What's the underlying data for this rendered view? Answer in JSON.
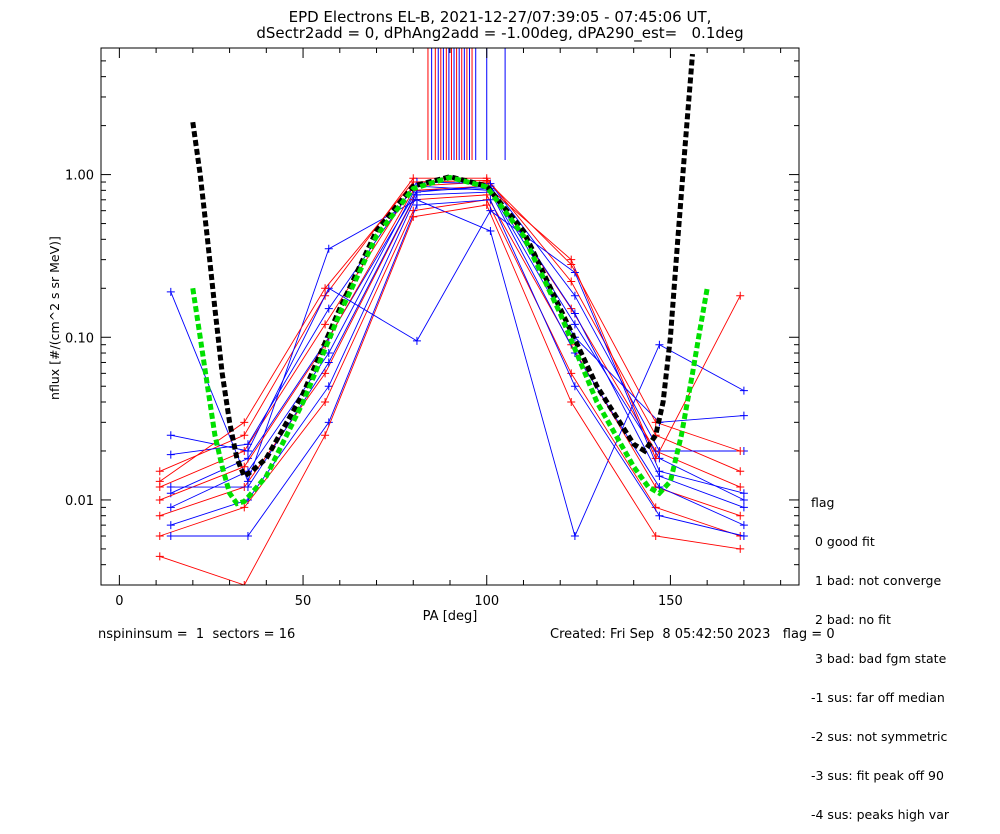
{
  "chart_data": {
    "type": "line",
    "title": "EPD Electrons EL-B, 2021-12-27/07:39:05 - 07:45:06 UT,",
    "subtitle": "dSectr2add = 0, dPhAng2add = -1.00deg, dPA290_est=   0.1deg",
    "xlabel": "PA [deg]",
    "ylabel": "nflux [#/(cm^2 s sr MeV)]",
    "xlim": [
      -5,
      185
    ],
    "ylim": [
      0.003,
      6
    ],
    "yscale": "log",
    "x_ticks": [
      0,
      50,
      100,
      150
    ],
    "y_ticks": [
      {
        "value": 1.0,
        "label": "1.00"
      },
      {
        "value": 0.1,
        "label": "0.10"
      },
      {
        "value": 0.01,
        "label": "0.01"
      }
    ],
    "pa_samples": [
      11,
      14,
      34,
      35,
      56,
      57,
      80,
      81,
      90,
      98,
      100,
      101,
      123,
      124,
      146,
      147,
      169,
      170
    ],
    "series": [
      {
        "color": "#ff0000",
        "points": [
          [
            11,
            0.012
          ],
          [
            34,
            0.02
          ],
          [
            56,
            0.12
          ],
          [
            80,
            0.85
          ],
          [
            100,
            0.9
          ],
          [
            123,
            0.15
          ],
          [
            146,
            0.02
          ],
          [
            169,
            0.012
          ]
        ]
      },
      {
        "color": "#0000ff",
        "points": [
          [
            14,
            0.011
          ],
          [
            35,
            0.018
          ],
          [
            57,
            0.1
          ],
          [
            81,
            0.8
          ],
          [
            101,
            0.82
          ],
          [
            124,
            0.12
          ],
          [
            147,
            0.018
          ],
          [
            170,
            0.01
          ]
        ]
      },
      {
        "color": "#ff0000",
        "points": [
          [
            11,
            0.008
          ],
          [
            34,
            0.012
          ],
          [
            56,
            0.06
          ],
          [
            80,
            0.7
          ],
          [
            100,
            0.75
          ],
          [
            123,
            0.09
          ],
          [
            146,
            0.012
          ],
          [
            169,
            0.008
          ]
        ]
      },
      {
        "color": "#0000ff",
        "points": [
          [
            14,
            0.007
          ],
          [
            35,
            0.01
          ],
          [
            57,
            0.05
          ],
          [
            81,
            0.75
          ],
          [
            101,
            0.78
          ],
          [
            124,
            0.08
          ],
          [
            147,
            0.012
          ],
          [
            170,
            0.007
          ]
        ]
      },
      {
        "color": "#ff0000",
        "points": [
          [
            11,
            0.015
          ],
          [
            34,
            0.025
          ],
          [
            56,
            0.18
          ],
          [
            80,
            0.95
          ],
          [
            100,
            0.95
          ],
          [
            123,
            0.22
          ],
          [
            146,
            0.025
          ],
          [
            169,
            0.015
          ]
        ]
      },
      {
        "color": "#0000ff",
        "points": [
          [
            14,
            0.019
          ],
          [
            35,
            0.022
          ],
          [
            57,
            0.15
          ],
          [
            81,
            0.9
          ],
          [
            101,
            0.88
          ],
          [
            124,
            0.18
          ],
          [
            147,
            0.02
          ],
          [
            170,
            0.02
          ]
        ]
      },
      {
        "color": "#ff0000",
        "points": [
          [
            11,
            0.006
          ],
          [
            34,
            0.009
          ],
          [
            56,
            0.04
          ],
          [
            80,
            0.6
          ],
          [
            100,
            0.7
          ],
          [
            123,
            0.06
          ],
          [
            146,
            0.009
          ],
          [
            169,
            0.006
          ]
        ]
      },
      {
        "color": "#0000ff",
        "points": [
          [
            14,
            0.006
          ],
          [
            35,
            0.006
          ],
          [
            57,
            0.03
          ],
          [
            81,
            0.65
          ],
          [
            101,
            0.7
          ],
          [
            124,
            0.05
          ],
          [
            147,
            0.008
          ],
          [
            170,
            0.006
          ]
        ]
      },
      {
        "color": "#0000ff",
        "points": [
          [
            14,
            0.19
          ],
          [
            35,
            0.013
          ],
          [
            57,
            0.35
          ],
          [
            81,
            0.7
          ],
          [
            101,
            0.45
          ],
          [
            124,
            0.006
          ],
          [
            147,
            0.09
          ],
          [
            170,
            0.047
          ]
        ]
      },
      {
        "color": "#ff0000",
        "points": [
          [
            11,
            0.01
          ],
          [
            34,
            0.016
          ],
          [
            56,
            0.09
          ],
          [
            80,
            0.8
          ],
          [
            100,
            0.85
          ],
          [
            123,
            0.3
          ],
          [
            146,
            0.018
          ],
          [
            169,
            0.18
          ]
        ]
      },
      {
        "color": "#0000ff",
        "points": [
          [
            14,
            0.009
          ],
          [
            35,
            0.015
          ],
          [
            57,
            0.08
          ],
          [
            81,
            0.85
          ],
          [
            101,
            0.8
          ],
          [
            124,
            0.1
          ],
          [
            147,
            0.03
          ],
          [
            170,
            0.033
          ]
        ]
      },
      {
        "color": "#ff0000",
        "points": [
          [
            11,
            0.0045
          ],
          [
            34,
            0.003
          ],
          [
            56,
            0.025
          ],
          [
            80,
            0.55
          ],
          [
            100,
            0.65
          ],
          [
            123,
            0.04
          ],
          [
            146,
            0.006
          ],
          [
            169,
            0.005
          ]
        ]
      },
      {
        "color": "#0000ff",
        "points": [
          [
            14,
            0.025
          ],
          [
            35,
            0.02
          ],
          [
            57,
            0.2
          ],
          [
            81,
            0.095
          ],
          [
            101,
            0.6
          ],
          [
            124,
            0.25
          ],
          [
            147,
            0.015
          ],
          [
            170,
            0.011
          ]
        ]
      },
      {
        "color": "#ff0000",
        "points": [
          [
            11,
            0.013
          ],
          [
            34,
            0.03
          ],
          [
            56,
            0.2
          ],
          [
            80,
            0.9
          ],
          [
            100,
            0.92
          ],
          [
            123,
            0.28
          ],
          [
            146,
            0.03
          ],
          [
            169,
            0.02
          ]
        ]
      },
      {
        "color": "#0000ff",
        "points": [
          [
            14,
            0.012
          ],
          [
            35,
            0.012
          ],
          [
            57,
            0.07
          ],
          [
            81,
            0.78
          ],
          [
            101,
            0.85
          ],
          [
            124,
            0.14
          ],
          [
            147,
            0.014
          ],
          [
            170,
            0.009
          ]
        ]
      }
    ],
    "fit_curves": [
      {
        "color": "#000000",
        "points": [
          [
            20,
            2.1
          ],
          [
            22,
            1.0
          ],
          [
            24,
            0.4
          ],
          [
            26,
            0.15
          ],
          [
            28,
            0.06
          ],
          [
            30,
            0.03
          ],
          [
            32,
            0.018
          ],
          [
            34,
            0.014
          ],
          [
            36,
            0.015
          ],
          [
            40,
            0.018
          ],
          [
            50,
            0.045
          ],
          [
            60,
            0.15
          ],
          [
            70,
            0.45
          ],
          [
            80,
            0.85
          ],
          [
            90,
            0.97
          ],
          [
            100,
            0.85
          ],
          [
            110,
            0.45
          ],
          [
            120,
            0.15
          ],
          [
            130,
            0.05
          ],
          [
            140,
            0.022
          ],
          [
            143,
            0.02
          ],
          [
            146,
            0.025
          ],
          [
            148,
            0.04
          ],
          [
            150,
            0.1
          ],
          [
            152,
            0.4
          ],
          [
            154,
            1.5
          ],
          [
            156,
            5.5
          ]
        ]
      },
      {
        "color": "#00e000",
        "points": [
          [
            20,
            0.2
          ],
          [
            22,
            0.1
          ],
          [
            24,
            0.05
          ],
          [
            26,
            0.025
          ],
          [
            28,
            0.016
          ],
          [
            30,
            0.011
          ],
          [
            32,
            0.0095
          ],
          [
            34,
            0.0098
          ],
          [
            36,
            0.011
          ],
          [
            40,
            0.014
          ],
          [
            50,
            0.04
          ],
          [
            60,
            0.14
          ],
          [
            70,
            0.42
          ],
          [
            80,
            0.82
          ],
          [
            90,
            0.96
          ],
          [
            100,
            0.84
          ],
          [
            110,
            0.42
          ],
          [
            120,
            0.14
          ],
          [
            130,
            0.04
          ],
          [
            140,
            0.016
          ],
          [
            144,
            0.012
          ],
          [
            147,
            0.011
          ],
          [
            150,
            0.013
          ],
          [
            153,
            0.025
          ],
          [
            156,
            0.06
          ],
          [
            158,
            0.11
          ],
          [
            160,
            0.2
          ]
        ]
      }
    ],
    "top_ticks": [
      {
        "x": 84.0,
        "color": "#ff0000"
      },
      {
        "x": 85.0,
        "color": "#0000ff"
      },
      {
        "x": 86.0,
        "color": "#ff0000"
      },
      {
        "x": 86.8,
        "color": "#0000ff"
      },
      {
        "x": 87.5,
        "color": "#ff0000"
      },
      {
        "x": 88.2,
        "color": "#0000ff"
      },
      {
        "x": 89.0,
        "color": "#ff0000"
      },
      {
        "x": 89.7,
        "color": "#0000ff"
      },
      {
        "x": 90.4,
        "color": "#ff0000"
      },
      {
        "x": 91.1,
        "color": "#0000ff"
      },
      {
        "x": 91.8,
        "color": "#ff0000"
      },
      {
        "x": 92.5,
        "color": "#0000ff"
      },
      {
        "x": 93.2,
        "color": "#ff0000"
      },
      {
        "x": 93.9,
        "color": "#0000ff"
      },
      {
        "x": 94.6,
        "color": "#ff0000"
      },
      {
        "x": 95.3,
        "color": "#0000ff"
      },
      {
        "x": 96.0,
        "color": "#ff0000"
      },
      {
        "x": 97.0,
        "color": "#0000ff"
      },
      {
        "x": 100.0,
        "color": "#0000ff"
      },
      {
        "x": 105.0,
        "color": "#0000ff"
      }
    ],
    "legend": {
      "placement": "right-outside",
      "title": "flag",
      "entries": [
        " 0 good fit",
        " 1 bad: not converge",
        " 2 bad: no fit",
        " 3 bad: bad fgm state",
        "-1 sus: far off median",
        "-2 sus: not symmetric",
        "-3 sus: fit peak off 90",
        "-4 sus: peaks high var"
      ]
    },
    "footer_left": "nspininsum =  1  sectors = 16",
    "footer_right": "Created: Fri Sep  8 05:42:50 2023   flag = 0",
    "colors": {
      "red": "#ff0000",
      "blue": "#0000ff",
      "fit_black": "#000000",
      "fit_green": "#00e000"
    }
  }
}
